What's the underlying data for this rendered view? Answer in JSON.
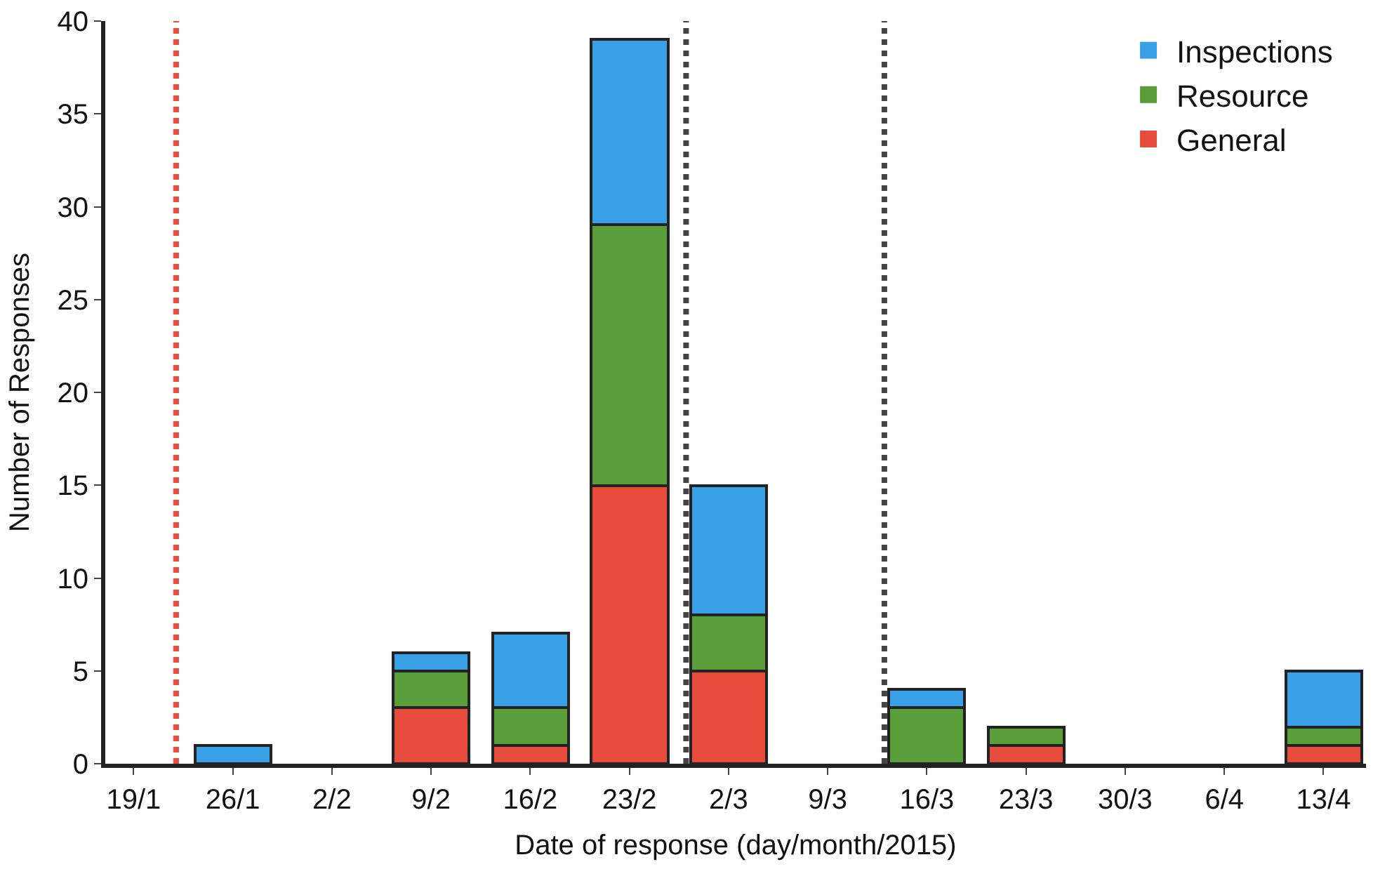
{
  "chart_data": {
    "type": "bar",
    "stacked": true,
    "xlabel": "Date of response (day/month/2015)",
    "ylabel": "Number of Responses",
    "x": [
      "2015-01-19",
      "2015-01-26",
      "2015-02-02",
      "2015-02-09",
      "2015-02-16",
      "2015-02-23",
      "2015-03-02",
      "2015-03-09",
      "2015-03-16",
      "2015-03-23",
      "2015-03-30",
      "2015-04-06",
      "2015-04-13"
    ],
    "series": [
      {
        "name": "General",
        "color": "#e84c3d",
        "values": [
          0,
          0,
          0,
          3,
          1,
          15,
          5,
          0,
          0,
          1,
          0,
          0,
          1
        ]
      },
      {
        "name": "Resource",
        "color": "#5a9e3a",
        "values": [
          0,
          0,
          0,
          2,
          2,
          14,
          3,
          0,
          3,
          1,
          0,
          0,
          1
        ]
      },
      {
        "name": "Inspections",
        "color": "#3aa0e6",
        "values": [
          0,
          1,
          0,
          1,
          4,
          10,
          7,
          0,
          1,
          0,
          0,
          0,
          3
        ]
      }
    ],
    "xlim": [
      "2015-01-17",
      "2015-04-16"
    ],
    "xticks": [
      {
        "value": "2015-01-19",
        "label": "19/1"
      },
      {
        "value": "2015-01-26",
        "label": "26/1"
      },
      {
        "value": "2015-02-02",
        "label": "2/2"
      },
      {
        "value": "2015-02-09",
        "label": "9/2"
      },
      {
        "value": "2015-02-16",
        "label": "16/2"
      },
      {
        "value": "2015-02-23",
        "label": "23/2"
      },
      {
        "value": "2015-03-02",
        "label": "2/3"
      },
      {
        "value": "2015-03-09",
        "label": "9/3"
      },
      {
        "value": "2015-03-16",
        "label": "16/3"
      },
      {
        "value": "2015-03-23",
        "label": "23/3"
      },
      {
        "value": "2015-03-30",
        "label": "30/3"
      },
      {
        "value": "2015-04-06",
        "label": "6/4"
      },
      {
        "value": "2015-04-13",
        "label": "13/4"
      }
    ],
    "ylim": [
      0,
      40
    ],
    "yticks": [
      0,
      5,
      10,
      15,
      20,
      25,
      30,
      35,
      40
    ],
    "ref_lines": [
      {
        "axis": "x",
        "value": "2015-01-22",
        "color": "#e84c3d",
        "line_style": "dotted"
      },
      {
        "axis": "x",
        "value": "2015-02-27",
        "color": "#444444",
        "line_style": "dotted"
      },
      {
        "axis": "x",
        "value": "2015-03-13",
        "color": "#444444",
        "line_style": "dotted"
      }
    ],
    "legend": "top right"
  }
}
